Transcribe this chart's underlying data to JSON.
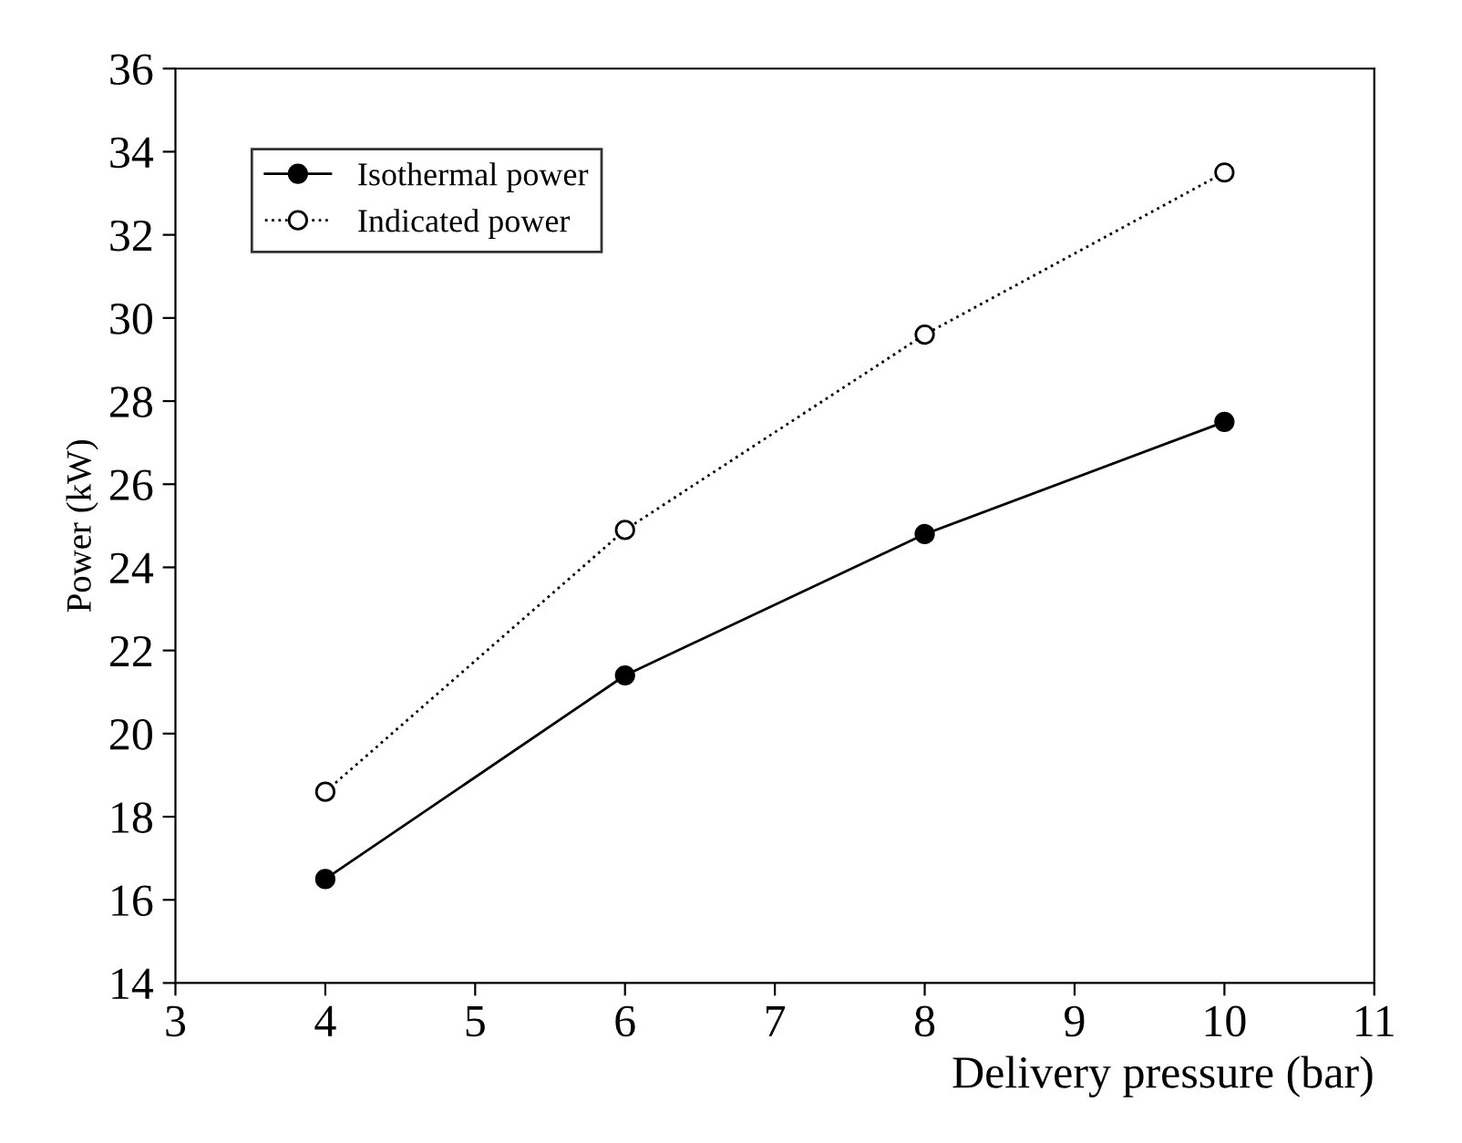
{
  "chart_data": {
    "type": "line",
    "xlabel": "Delivery pressure (bar)",
    "ylabel": "Power (kW)",
    "xlim": [
      3,
      11
    ],
    "xticks": [
      3,
      4,
      5,
      6,
      7,
      8,
      9,
      10,
      11
    ],
    "ylim": [
      14,
      36
    ],
    "yticks": [
      14,
      16,
      18,
      20,
      22,
      24,
      26,
      28,
      30,
      32,
      34,
      36
    ],
    "legend": "top left",
    "grid": false,
    "series": [
      {
        "name": "Isothermal power",
        "color": "#000000",
        "x": [
          4,
          6,
          8,
          10
        ],
        "values": [
          16.5,
          21.4,
          24.8,
          27.5
        ],
        "marker": "circle",
        "line_style": "solid"
      },
      {
        "name": "Indicated power",
        "color": "#000000",
        "x": [
          4,
          6,
          8,
          10
        ],
        "values": [
          18.6,
          24.9,
          29.6,
          33.5
        ],
        "marker": "circle",
        "line_style": "dotted"
      }
    ]
  }
}
